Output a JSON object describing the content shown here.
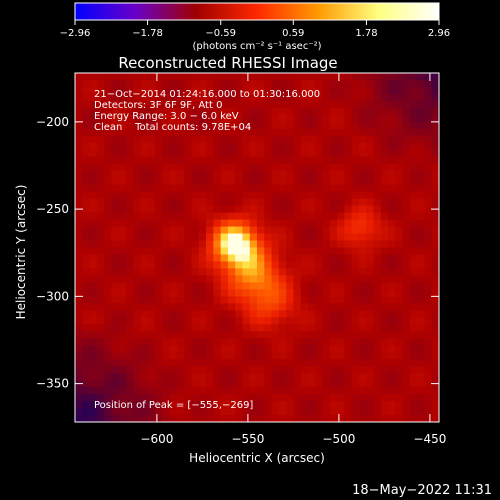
{
  "chart_data": {
    "type": "heatmap",
    "title": "Reconstructed RHESSI Image",
    "xlabel": "Heliocentric X (arcsec)",
    "ylabel": "Heliocentric Y (arcsec)",
    "xlim": [
      -645,
      -445
    ],
    "ylim": [
      -372,
      -172
    ],
    "x_ticks": [
      -600,
      -550,
      -500,
      -450
    ],
    "y_ticks": [
      -200,
      -250,
      -300,
      -350
    ],
    "x_tick_labels": [
      "−600",
      "−550",
      "−500",
      "−450"
    ],
    "y_tick_labels": [
      "−200",
      "−250",
      "−300",
      "−350"
    ],
    "colorbar": {
      "range": [
        -2.96,
        2.96
      ],
      "ticks": [
        -2.96,
        -1.78,
        -0.59,
        0.59,
        1.78,
        2.96
      ],
      "tick_labels": [
        "−2.96",
        "−1.78",
        "−0.59",
        "0.59",
        "1.78",
        "2.96"
      ],
      "units": "(photons cm⁻² s⁻¹ asec⁻²)",
      "colors": [
        "#0000ff",
        "#6a00c8",
        "#a00000",
        "#ff2800",
        "#ff9900",
        "#ffff80",
        "#ffffff"
      ]
    },
    "annotations": [
      "21−Oct−2014 01:24:16.000 to 01:30:16.000",
      "Detectors: 3F 6F 9F, Att 0",
      "Energy Range: 3.0 − 6.0 keV",
      "Clean    Total counts: 9.78E+04"
    ],
    "peak_label": "Position of Peak = [−555,−269]",
    "peak": {
      "x": -555,
      "y": -269
    },
    "sources": [
      {
        "x": -557,
        "y": -270,
        "sigma": 9,
        "amplitude": 1.0
      },
      {
        "x": -547,
        "y": -288,
        "sigma": 11,
        "amplitude": 0.55
      },
      {
        "x": -537,
        "y": -305,
        "sigma": 10,
        "amplitude": 0.3
      },
      {
        "x": -488,
        "y": -261,
        "sigma": 8,
        "amplitude": 0.35
      }
    ]
  },
  "timestamp": "18−May−2022 11:31"
}
